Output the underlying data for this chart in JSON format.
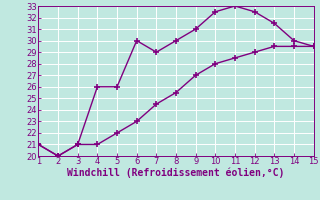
{
  "xlabel": "Windchill (Refroidissement éolien,°C)",
  "line1_x": [
    1,
    2,
    3,
    4,
    5,
    6,
    7,
    8,
    9,
    10,
    11,
    12,
    13,
    14,
    15
  ],
  "line1_y": [
    21,
    20,
    21,
    26,
    26,
    30,
    29,
    30,
    31,
    32.5,
    33,
    32.5,
    31.5,
    30,
    29.5
  ],
  "line2_x": [
    1,
    2,
    3,
    4,
    5,
    6,
    7,
    8,
    9,
    10,
    11,
    12,
    13,
    14,
    15
  ],
  "line2_y": [
    21,
    20,
    21,
    21,
    22,
    23,
    24.5,
    25.5,
    27,
    28,
    28.5,
    29,
    29.5,
    29.5,
    29.5
  ],
  "color": "#800080",
  "bg_color": "#c0e8e0",
  "xlim": [
    1,
    15
  ],
  "ylim": [
    20,
    33
  ],
  "xticks": [
    1,
    2,
    3,
    4,
    5,
    6,
    7,
    8,
    9,
    10,
    11,
    12,
    13,
    14,
    15
  ],
  "yticks": [
    20,
    21,
    22,
    23,
    24,
    25,
    26,
    27,
    28,
    29,
    30,
    31,
    32,
    33
  ],
  "marker": "+",
  "markersize": 4,
  "markeredgewidth": 1.2,
  "linewidth": 1.0,
  "tick_fontsize": 6,
  "xlabel_fontsize": 7
}
